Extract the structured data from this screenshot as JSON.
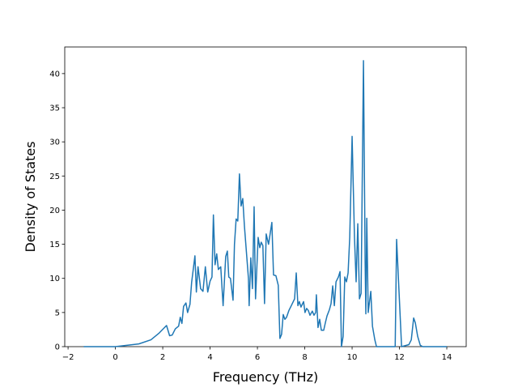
{
  "chart_data": {
    "type": "line",
    "x_label": "Frequency (THz)",
    "y_label": "Density of States",
    "series": [
      {
        "color": "#1f77b4",
        "x": [
          -1.34,
          0,
          0.99,
          1.5,
          1.85,
          2.16,
          2.29,
          2.4,
          2.53,
          2.67,
          2.74,
          2.81,
          2.88,
          2.98,
          3.05,
          3.15,
          3.22,
          3.36,
          3.42,
          3.49,
          3.6,
          3.7,
          3.8,
          3.9,
          4.0,
          4.08,
          4.14,
          4.21,
          4.28,
          4.35,
          4.45,
          4.55,
          4.66,
          4.73,
          4.79,
          4.86,
          4.97,
          5.03,
          5.1,
          5.17,
          5.24,
          5.31,
          5.38,
          5.45,
          5.62,
          5.65,
          5.72,
          5.79,
          5.86,
          5.92,
          6.03,
          6.1,
          6.16,
          6.23,
          6.3,
          6.37,
          6.47,
          6.61,
          6.68,
          6.78,
          6.88,
          6.95,
          7.02,
          7.09,
          7.16,
          7.23,
          7.33,
          7.43,
          7.57,
          7.64,
          7.71,
          7.77,
          7.84,
          7.95,
          8.01,
          8.08,
          8.15,
          8.22,
          8.32,
          8.39,
          8.46,
          8.49,
          8.56,
          8.63,
          8.7,
          8.8,
          8.87,
          8.94,
          9.04,
          9.11,
          9.18,
          9.25,
          9.32,
          9.42,
          9.49,
          9.55,
          9.62,
          9.69,
          9.76,
          9.83,
          9.9,
          10.0,
          10.1,
          10.17,
          10.24,
          10.31,
          10.38,
          10.48,
          10.55,
          10.58,
          10.62,
          10.68,
          10.79,
          10.86,
          10.96,
          11.03,
          11.82,
          11.88,
          12.09,
          12.4,
          12.5,
          12.6,
          12.67,
          12.77,
          12.88,
          12.98,
          14.0
        ],
        "values": [
          0,
          0,
          0.4,
          1.0,
          2.0,
          3.1,
          1.6,
          1.7,
          2.6,
          3.0,
          4.3,
          3.4,
          5.9,
          6.4,
          5.0,
          6.2,
          9.4,
          13.3,
          8.0,
          11.7,
          8.5,
          8.1,
          11.7,
          8.0,
          9.6,
          10.2,
          19.3,
          12.0,
          13.6,
          11.3,
          11.7,
          6.0,
          13.2,
          14.0,
          10.2,
          10.0,
          6.8,
          15.0,
          18.7,
          18.4,
          25.3,
          20.6,
          21.7,
          17.7,
          10.0,
          6.0,
          13.0,
          8.5,
          20.5,
          7.0,
          16.0,
          14.5,
          15.3,
          14.8,
          6.3,
          16.5,
          15.0,
          18.2,
          10.5,
          10.4,
          9.0,
          1.2,
          1.8,
          4.7,
          4.0,
          4.3,
          5.3,
          6.0,
          7.0,
          10.8,
          6.0,
          6.6,
          5.8,
          6.6,
          5.0,
          5.6,
          5.3,
          4.6,
          5.2,
          4.6,
          5.0,
          7.6,
          2.8,
          4.0,
          2.4,
          2.4,
          3.5,
          4.5,
          5.4,
          6.3,
          8.9,
          6.0,
          9.5,
          10.2,
          11.0,
          0,
          1.5,
          10.2,
          9.5,
          10.8,
          16.0,
          30.8,
          16.0,
          9.5,
          18.0,
          7.0,
          7.8,
          41.9,
          12.5,
          4.8,
          18.8,
          5.0,
          8.1,
          3.0,
          1.0,
          0,
          0,
          15.7,
          0,
          0.3,
          1.0,
          4.2,
          3.5,
          1.5,
          0.2,
          0,
          0
        ]
      }
    ],
    "xlim": [
      -2.14,
      14.82
    ],
    "ylim": [
      0,
      43.9
    ],
    "xticks": [
      {
        "value": -2,
        "label": "−2"
      },
      0,
      2,
      4,
      6,
      8,
      10,
      12,
      14
    ],
    "yticks": [
      0,
      5,
      10,
      15,
      20,
      25,
      30,
      35,
      40
    ]
  }
}
